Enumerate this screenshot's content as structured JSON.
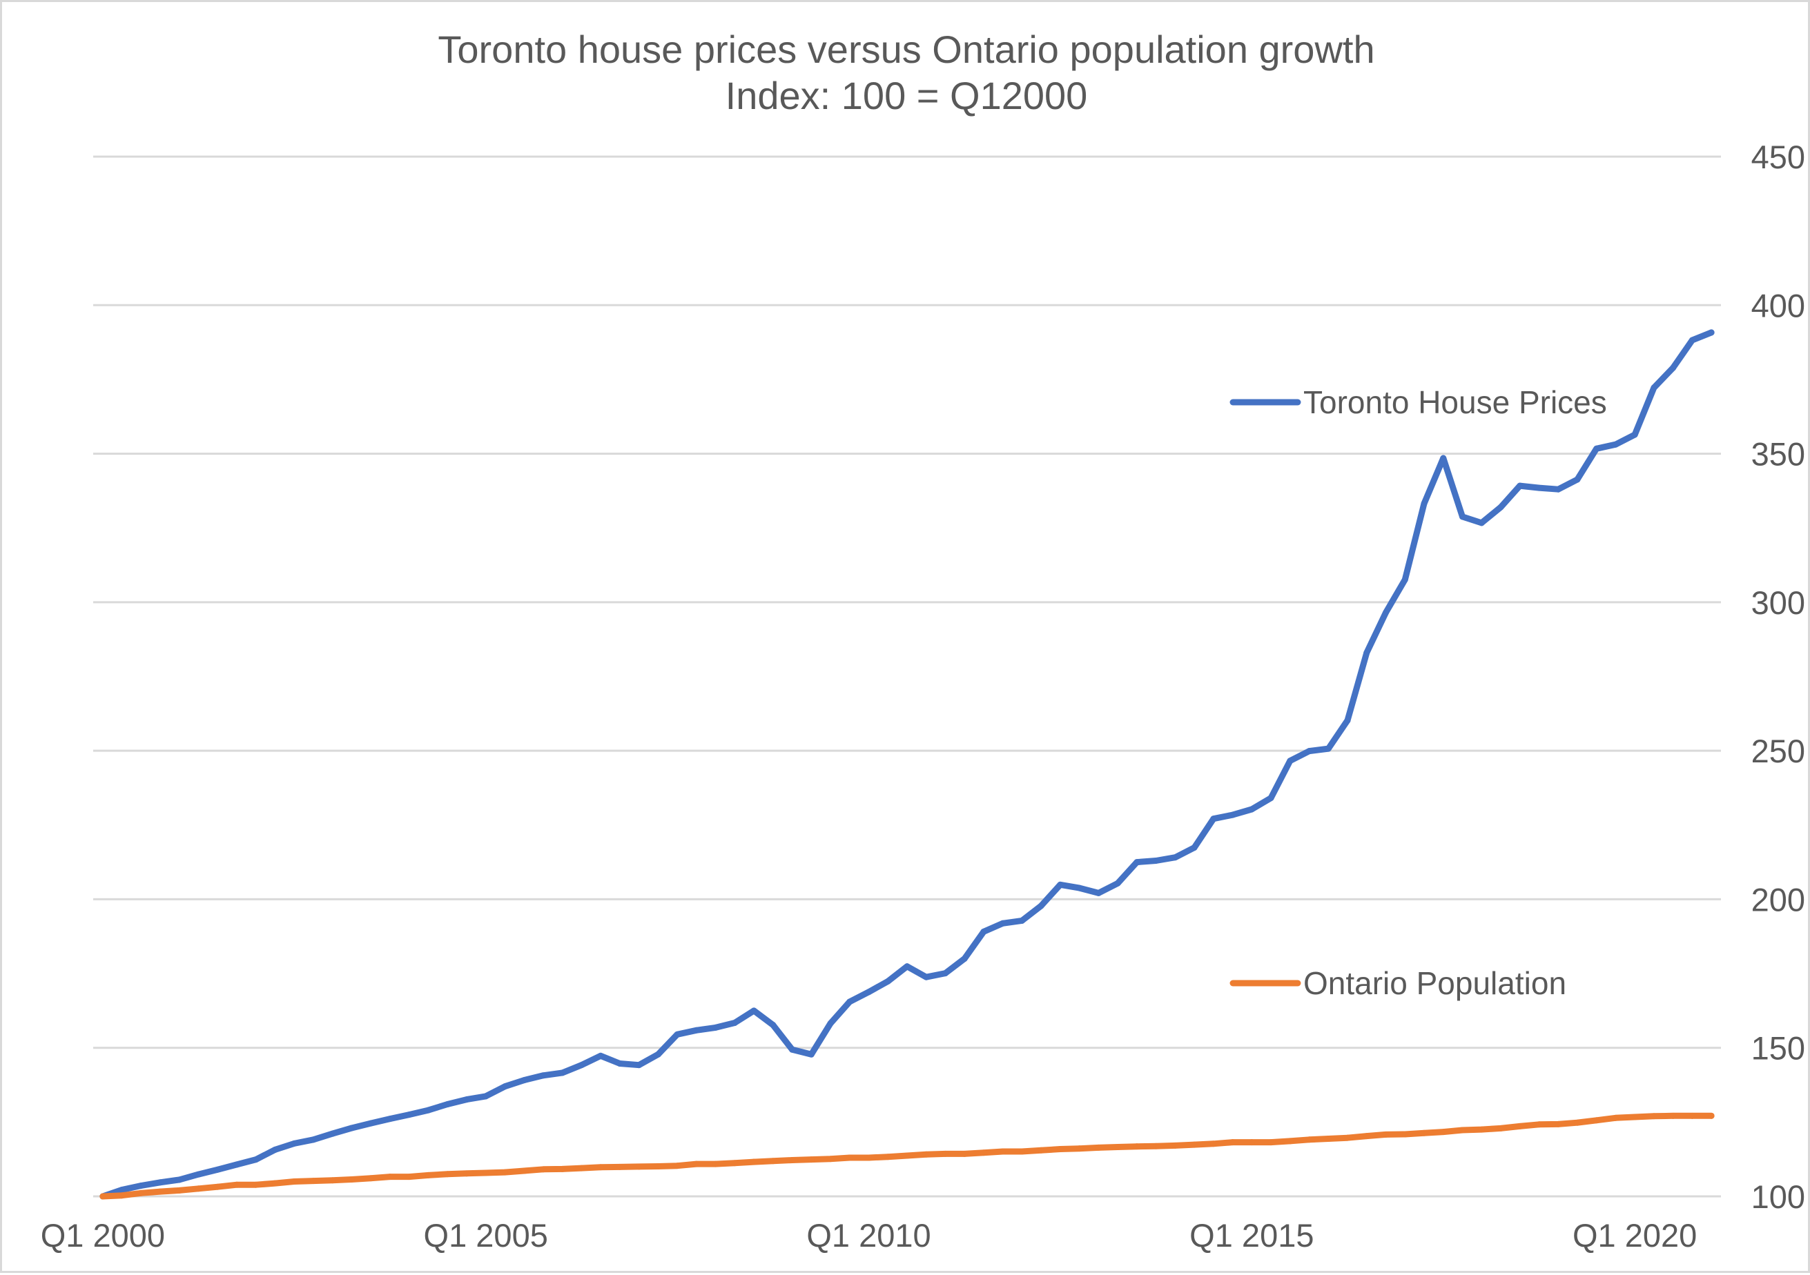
{
  "chart_data": {
    "type": "line",
    "title": "Toronto house prices versus Ontario population growth",
    "subtitle": "Index: 100 = Q12000",
    "xlabel": "",
    "ylabel": "",
    "ylim": [
      100,
      450
    ],
    "y_ticks": [
      "100",
      "150",
      "200",
      "250",
      "300",
      "350",
      "400",
      "450"
    ],
    "y_axis_side": "right",
    "x_start": "Q1 2000",
    "x_end": "Q1 2021",
    "x_frequency": "quarterly",
    "x_tick_labels": [
      {
        "index": 0,
        "label": "Q1 2000"
      },
      {
        "index": 20,
        "label": "Q1 2005"
      },
      {
        "index": 40,
        "label": "Q1 2010"
      },
      {
        "index": 60,
        "label": "Q1 2015"
      },
      {
        "index": 80,
        "label": "Q1 2020"
      }
    ],
    "grid": true,
    "legend_placement": "inside-right",
    "series": [
      {
        "name": "Toronto House Prices",
        "color": "#4472C4",
        "values": [
          100,
          102.2,
          103.6,
          104.7,
          105.6,
          107.4,
          109.0,
          110.7,
          112.4,
          115.7,
          117.8,
          119.1,
          121.1,
          123.0,
          124.6,
          126.1,
          127.5,
          129.0,
          131.0,
          132.6,
          133.7,
          137.0,
          139.1,
          140.7,
          141.6,
          144.2,
          147.3,
          144.7,
          144.2,
          147.8,
          154.5,
          155.9,
          156.8,
          158.4,
          162.5,
          157.7,
          149.4,
          147.8,
          158.2,
          165.5,
          168.8,
          172.4,
          177.4,
          173.8,
          175.1,
          180.0,
          189.1,
          191.9,
          192.8,
          197.8,
          204.9,
          203.8,
          202.1,
          205.4,
          212.5,
          213.0,
          214.1,
          217.4,
          227.1,
          228.4,
          230.3,
          234.1,
          246.6,
          249.9,
          250.7,
          260.2,
          283.0,
          296.5,
          307.6,
          333.2,
          348.5,
          328.8,
          326.7,
          332.0,
          339.2,
          338.5,
          338.0,
          341.3,
          351.7,
          353.1,
          356.4,
          372.2,
          378.9,
          388.2,
          390.8
        ]
      },
      {
        "name": "Ontario Population",
        "color": "#ED7D31",
        "values": [
          100,
          100.3,
          101.1,
          101.6,
          102.0,
          102.6,
          103.2,
          103.9,
          103.9,
          104.4,
          105.0,
          105.2,
          105.4,
          105.7,
          106.1,
          106.6,
          106.6,
          107.1,
          107.5,
          107.7,
          107.9,
          108.1,
          108.6,
          109.1,
          109.2,
          109.5,
          109.8,
          109.9,
          110.0,
          110.1,
          110.3,
          110.9,
          110.9,
          111.2,
          111.6,
          111.9,
          112.2,
          112.4,
          112.6,
          113.0,
          113.0,
          113.3,
          113.7,
          114.1,
          114.3,
          114.3,
          114.7,
          115.1,
          115.1,
          115.5,
          115.9,
          116.1,
          116.4,
          116.6,
          116.8,
          116.9,
          117.1,
          117.4,
          117.7,
          118.2,
          118.2,
          118.2,
          118.6,
          119.1,
          119.4,
          119.7,
          120.3,
          120.8,
          120.9,
          121.3,
          121.7,
          122.3,
          122.5,
          122.9,
          123.6,
          124.2,
          124.3,
          124.8,
          125.6,
          126.4,
          126.7,
          127.0,
          127.1,
          127.1,
          127.1
        ]
      }
    ]
  }
}
